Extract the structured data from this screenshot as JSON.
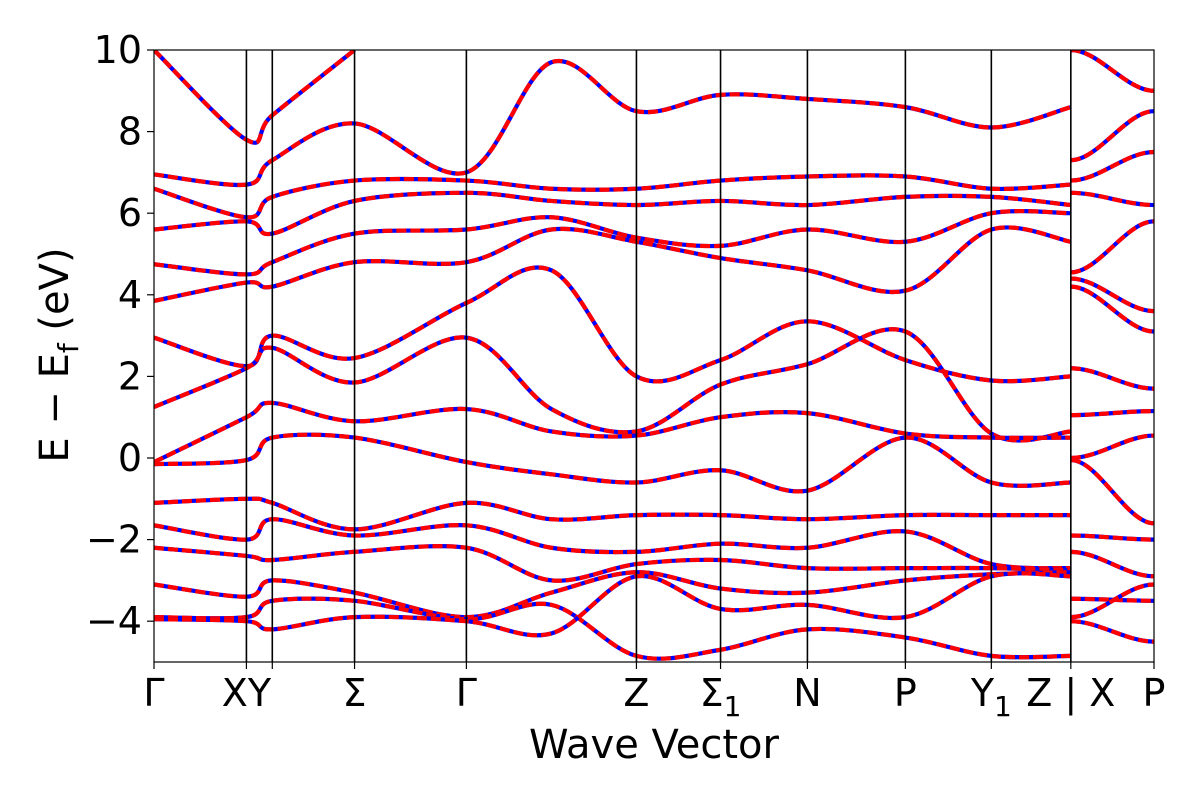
{
  "chart_data": {
    "type": "line",
    "xlabel": "Wave Vector",
    "ylabel": "E − E",
    "ylabel_sub": "f",
    "ylabel_unit": "(eV)",
    "ylim": [
      -5,
      10
    ],
    "y_ticks": [
      -4,
      -2,
      0,
      2,
      4,
      6,
      8,
      10
    ],
    "y_tick_labels": [
      "−4",
      "−2",
      "0",
      "2",
      "4",
      "6",
      "8",
      "10"
    ],
    "x_range": [
      0,
      10.82
    ],
    "high_symmetry_points": [
      {
        "label": "Γ",
        "x": 0.0
      },
      {
        "label": "XY",
        "x": 1.0
      },
      {
        "label": "",
        "x": 1.28
      },
      {
        "label": "Σ",
        "x": 2.17
      },
      {
        "label": "Γ",
        "x": 3.38
      },
      {
        "label": "Z",
        "x": 5.22
      },
      {
        "label": "Σ",
        "sub": "1",
        "x": 6.13
      },
      {
        "label": "N",
        "x": 7.07
      },
      {
        "label": "P",
        "x": 8.13
      },
      {
        "label": "Y",
        "sub": "1",
        "x": 9.06
      },
      {
        "label": "Z | X",
        "x": 9.92
      },
      {
        "label": "P",
        "x": 10.82
      }
    ],
    "grid": false,
    "legend": "none",
    "series_style": [
      {
        "color": "#0000ff",
        "style": "solid"
      },
      {
        "color": "#ff0000",
        "style": "dashed"
      }
    ],
    "bands": [
      [
        [
          0,
          10
        ],
        [
          1,
          7.8
        ],
        [
          1.28,
          8.4
        ],
        [
          2.17,
          10
        ]
      ],
      [
        [
          0,
          6.95
        ],
        [
          1,
          6.7
        ],
        [
          1.28,
          7.3
        ],
        [
          2.17,
          8.2
        ],
        [
          3.38,
          7.0
        ],
        [
          4.3,
          9.7
        ],
        [
          5.22,
          8.5
        ],
        [
          6.13,
          8.9
        ],
        [
          7.07,
          8.8
        ],
        [
          8.13,
          8.6
        ],
        [
          9.06,
          8.1
        ],
        [
          9.92,
          8.6
        ]
      ],
      [
        [
          0,
          6.6
        ],
        [
          1,
          5.9
        ],
        [
          1.28,
          6.4
        ],
        [
          2.17,
          6.8
        ],
        [
          3.38,
          6.8
        ],
        [
          4.3,
          6.6
        ],
        [
          5.22,
          6.6
        ],
        [
          6.13,
          6.8
        ],
        [
          7.07,
          6.9
        ],
        [
          8.13,
          6.9
        ],
        [
          9.06,
          6.6
        ],
        [
          9.92,
          6.7
        ]
      ],
      [
        [
          0,
          5.6
        ],
        [
          1,
          5.8
        ],
        [
          1.28,
          5.5
        ],
        [
          2.17,
          6.3
        ],
        [
          3.38,
          6.5
        ],
        [
          4.3,
          6.3
        ],
        [
          5.22,
          6.2
        ],
        [
          6.13,
          6.3
        ],
        [
          7.07,
          6.2
        ],
        [
          8.13,
          6.4
        ],
        [
          9.06,
          6.4
        ],
        [
          9.92,
          6.2
        ]
      ],
      [
        [
          0,
          4.75
        ],
        [
          1,
          4.5
        ],
        [
          1.28,
          4.8
        ],
        [
          2.17,
          5.5
        ],
        [
          3.38,
          5.6
        ],
        [
          4.3,
          5.9
        ],
        [
          5.22,
          5.4
        ],
        [
          6.13,
          5.2
        ],
        [
          7.07,
          5.6
        ],
        [
          8.13,
          5.3
        ],
        [
          9.06,
          6.0
        ],
        [
          9.92,
          6.0
        ]
      ],
      [
        [
          0,
          3.85
        ],
        [
          1,
          4.3
        ],
        [
          1.28,
          4.2
        ],
        [
          2.17,
          4.8
        ],
        [
          3.38,
          4.8
        ],
        [
          4.3,
          5.6
        ],
        [
          5.22,
          5.3
        ],
        [
          6.13,
          4.9
        ],
        [
          7.07,
          4.6
        ],
        [
          8.13,
          4.1
        ],
        [
          9.06,
          5.6
        ],
        [
          9.92,
          5.3
        ]
      ],
      [
        [
          0,
          2.95
        ],
        [
          1,
          2.25
        ],
        [
          1.28,
          3.0
        ],
        [
          2.17,
          2.45
        ],
        [
          3.38,
          3.8
        ],
        [
          4.3,
          4.6
        ],
        [
          5.22,
          2.0
        ],
        [
          6.13,
          2.4
        ],
        [
          7.07,
          3.35
        ],
        [
          8.13,
          2.4
        ],
        [
          9.06,
          1.9
        ],
        [
          9.92,
          2.0
        ]
      ],
      [
        [
          0,
          1.25
        ],
        [
          1,
          2.2
        ],
        [
          1.28,
          2.7
        ],
        [
          2.17,
          1.85
        ],
        [
          3.38,
          2.95
        ],
        [
          4.3,
          1.2
        ],
        [
          5.22,
          0.65
        ],
        [
          6.13,
          1.8
        ],
        [
          7.07,
          2.3
        ],
        [
          8.13,
          3.1
        ],
        [
          9.06,
          0.6
        ],
        [
          9.92,
          0.65
        ]
      ],
      [
        [
          0,
          -0.1
        ],
        [
          1,
          1.0
        ],
        [
          1.28,
          1.35
        ],
        [
          2.17,
          0.9
        ],
        [
          3.38,
          1.2
        ],
        [
          4.3,
          0.65
        ],
        [
          5.22,
          0.55
        ],
        [
          6.13,
          1.0
        ],
        [
          7.07,
          1.1
        ],
        [
          8.13,
          0.6
        ],
        [
          9.06,
          0.5
        ],
        [
          9.92,
          0.5
        ]
      ],
      [
        [
          0,
          -0.15
        ],
        [
          1,
          -0.05
        ],
        [
          1.28,
          0.5
        ],
        [
          2.17,
          0.5
        ],
        [
          3.38,
          -0.1
        ],
        [
          4.3,
          -0.4
        ],
        [
          5.22,
          -0.6
        ],
        [
          6.13,
          -0.3
        ],
        [
          7.07,
          -0.8
        ],
        [
          8.13,
          0.5
        ],
        [
          9.06,
          -0.6
        ],
        [
          9.92,
          -0.6
        ]
      ],
      [
        [
          0,
          -1.1
        ],
        [
          1,
          -1.0
        ],
        [
          1.28,
          -1.1
        ],
        [
          2.17,
          -1.75
        ],
        [
          3.38,
          -1.1
        ],
        [
          4.3,
          -1.5
        ],
        [
          5.22,
          -1.4
        ],
        [
          6.13,
          -1.4
        ],
        [
          7.07,
          -1.5
        ],
        [
          8.13,
          -1.4
        ],
        [
          9.06,
          -1.4
        ],
        [
          9.92,
          -1.4
        ]
      ],
      [
        [
          0,
          -1.65
        ],
        [
          1,
          -2.0
        ],
        [
          1.28,
          -1.5
        ],
        [
          2.17,
          -1.9
        ],
        [
          3.38,
          -1.65
        ],
        [
          4.3,
          -2.2
        ],
        [
          5.22,
          -2.3
        ],
        [
          6.13,
          -2.1
        ],
        [
          7.07,
          -2.2
        ],
        [
          8.13,
          -1.8
        ],
        [
          9.06,
          -2.6
        ],
        [
          9.92,
          -2.7
        ]
      ],
      [
        [
          0,
          -2.2
        ],
        [
          1,
          -2.4
        ],
        [
          1.28,
          -2.5
        ],
        [
          2.17,
          -2.3
        ],
        [
          3.38,
          -2.2
        ],
        [
          4.3,
          -3.0
        ],
        [
          5.22,
          -2.6
        ],
        [
          6.13,
          -2.5
        ],
        [
          7.07,
          -2.7
        ],
        [
          8.13,
          -2.7
        ],
        [
          9.06,
          -2.7
        ],
        [
          9.92,
          -2.75
        ]
      ],
      [
        [
          0,
          -3.1
        ],
        [
          1,
          -3.4
        ],
        [
          1.28,
          -3.0
        ],
        [
          2.17,
          -3.3
        ],
        [
          3.38,
          -3.9
        ],
        [
          4.3,
          -3.3
        ],
        [
          5.22,
          -2.8
        ],
        [
          6.13,
          -3.2
        ],
        [
          7.07,
          -3.3
        ],
        [
          8.13,
          -3.0
        ],
        [
          9.06,
          -2.85
        ],
        [
          9.92,
          -2.8
        ]
      ],
      [
        [
          0,
          -3.9
        ],
        [
          1,
          -3.9
        ],
        [
          1.28,
          -3.5
        ],
        [
          2.17,
          -3.5
        ],
        [
          3.38,
          -3.95
        ],
        [
          4.3,
          -3.6
        ],
        [
          5.22,
          -4.85
        ],
        [
          6.13,
          -4.7
        ],
        [
          7.07,
          -4.2
        ],
        [
          8.13,
          -4.4
        ],
        [
          9.06,
          -4.85
        ],
        [
          9.92,
          -4.85
        ]
      ],
      [
        [
          0,
          -3.95
        ],
        [
          1,
          -4.0
        ],
        [
          1.28,
          -4.2
        ],
        [
          2.17,
          -3.9
        ],
        [
          3.38,
          -4.0
        ],
        [
          4.3,
          -4.3
        ],
        [
          5.22,
          -2.9
        ],
        [
          6.13,
          -3.7
        ],
        [
          7.07,
          -3.6
        ],
        [
          8.13,
          -3.9
        ],
        [
          9.06,
          -2.9
        ],
        [
          9.92,
          -2.9
        ]
      ],
      [
        [
          9.92,
          10
        ],
        [
          10.82,
          9.0
        ]
      ],
      [
        [
          9.92,
          7.3
        ],
        [
          10.82,
          8.5
        ]
      ],
      [
        [
          9.92,
          6.8
        ],
        [
          10.82,
          7.5
        ]
      ],
      [
        [
          9.92,
          6.5
        ],
        [
          10.82,
          6.2
        ]
      ],
      [
        [
          9.92,
          4.55
        ],
        [
          10.82,
          5.8
        ]
      ],
      [
        [
          9.92,
          4.4
        ],
        [
          10.82,
          3.6
        ]
      ],
      [
        [
          9.92,
          4.2
        ],
        [
          10.82,
          3.1
        ]
      ],
      [
        [
          9.92,
          2.2
        ],
        [
          10.82,
          1.7
        ]
      ],
      [
        [
          9.92,
          1.05
        ],
        [
          10.82,
          1.15
        ]
      ],
      [
        [
          9.92,
          0.0
        ],
        [
          10.82,
          0.55
        ]
      ],
      [
        [
          9.92,
          -0.05
        ],
        [
          10.82,
          -1.6
        ]
      ],
      [
        [
          9.92,
          -1.9
        ],
        [
          10.82,
          -2.0
        ]
      ],
      [
        [
          9.92,
          -2.3
        ],
        [
          10.82,
          -2.9
        ]
      ],
      [
        [
          9.92,
          -3.45
        ],
        [
          10.82,
          -3.5
        ]
      ],
      [
        [
          9.92,
          -3.9
        ],
        [
          10.82,
          -3.1
        ]
      ],
      [
        [
          9.92,
          -4.0
        ],
        [
          10.82,
          -4.5
        ]
      ]
    ]
  }
}
